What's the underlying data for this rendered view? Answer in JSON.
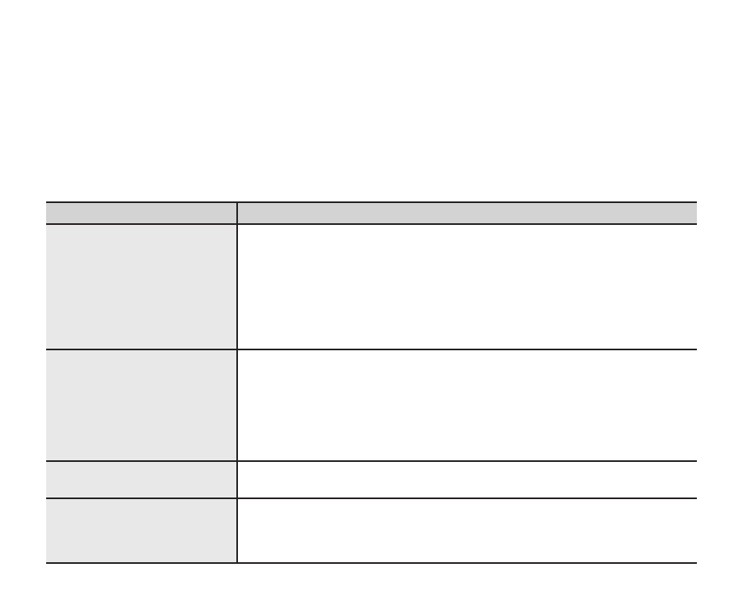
{
  "table": {
    "header": [
      "",
      ""
    ],
    "rows": [
      [
        "",
        ""
      ],
      [
        "",
        ""
      ],
      [
        "",
        ""
      ],
      [
        "",
        ""
      ]
    ]
  },
  "colors": {
    "header_bg": "#d3d3d3",
    "first_column_bg": "#e8e8e8",
    "rule": "#231f20"
  }
}
